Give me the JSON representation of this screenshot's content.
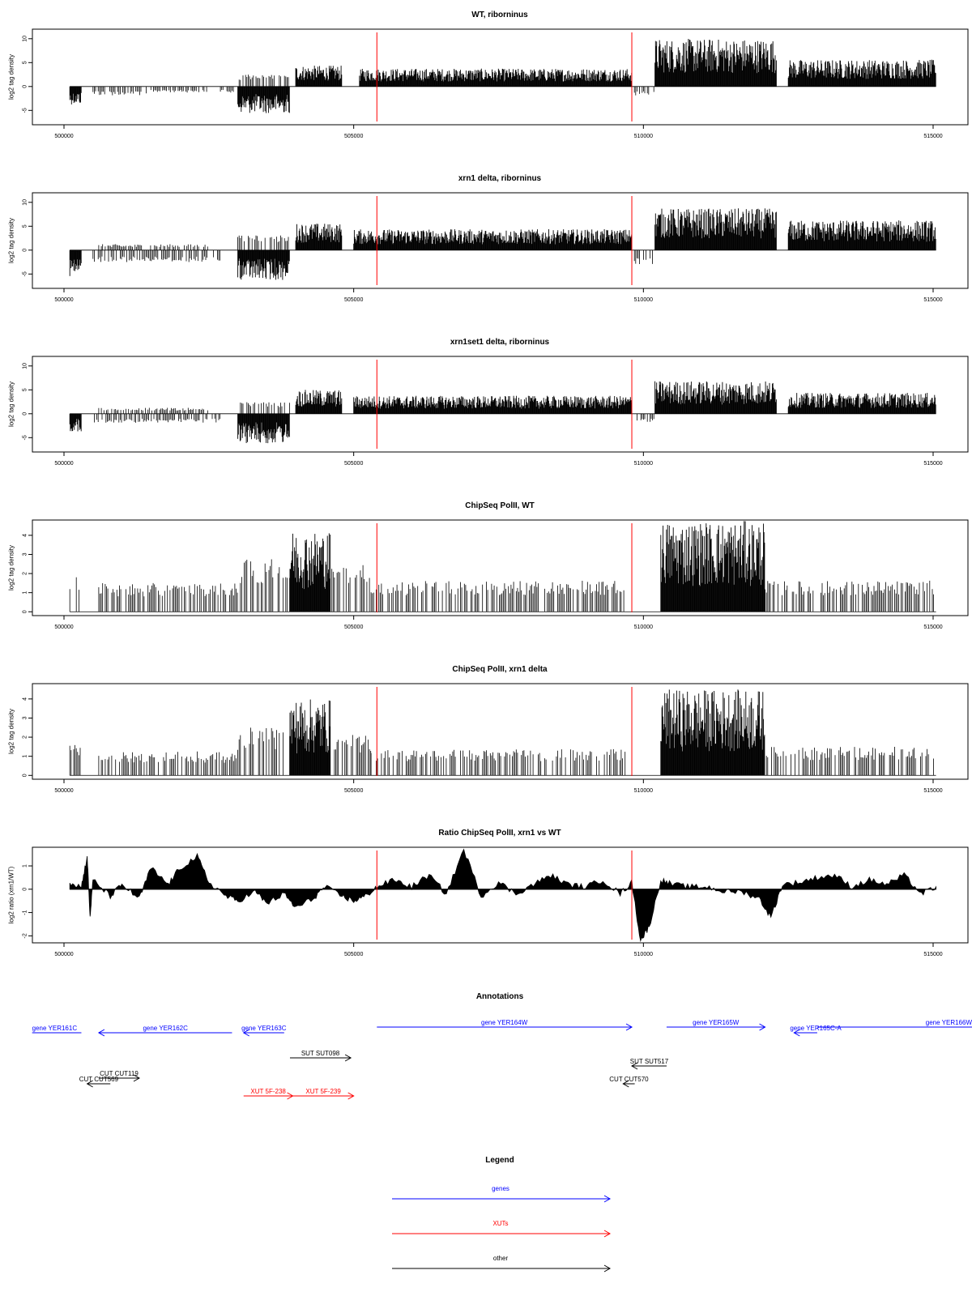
{
  "colors": {
    "gene": "#0000ff",
    "xut": "#ff0000",
    "other": "#000000",
    "marker": "#ff0000",
    "signal": "#000000"
  },
  "chart_data": [
    {
      "type": "bar",
      "title": "WT, riborninus",
      "ylabel": "log2 tag density",
      "xlim": [
        500000,
        515000
      ],
      "ylim": [
        -8,
        12
      ],
      "xticks": [
        "500000",
        "505000",
        "510000",
        "515000"
      ],
      "yticks": [
        "-5",
        "0",
        "5",
        "10"
      ],
      "markers_x": [
        505400,
        509800
      ],
      "segments": [
        {
          "x0": 500100,
          "x1": 500300,
          "level": -3
        },
        {
          "x0": 500500,
          "x1": 501500,
          "level": -1.5
        },
        {
          "x0": 501500,
          "x1": 502500,
          "level": -1
        },
        {
          "x0": 502700,
          "x1": 503000,
          "level": -1
        },
        {
          "x0": 503000,
          "x1": 503900,
          "level": -4.5
        },
        {
          "x0": 503000,
          "x1": 503900,
          "level": 2
        },
        {
          "x0": 504000,
          "x1": 504800,
          "level": 3.5
        },
        {
          "x0": 505100,
          "x1": 509800,
          "level": 3
        },
        {
          "x0": 509800,
          "x1": 510200,
          "level": -1.5
        },
        {
          "x0": 510200,
          "x1": 512300,
          "level": 8
        },
        {
          "x0": 512500,
          "x1": 515050,
          "level": 4.5
        }
      ]
    },
    {
      "type": "bar",
      "title": "xrn1 delta, riborninus",
      "ylabel": "log2 tag density",
      "xlim": [
        500000,
        515000
      ],
      "ylim": [
        -8,
        12
      ],
      "xticks": [
        "500000",
        "505000",
        "510000",
        "515000"
      ],
      "yticks": [
        "-5",
        "0",
        "5",
        "10"
      ],
      "markers_x": [
        505400,
        509800
      ],
      "segments": [
        {
          "x0": 500100,
          "x1": 500300,
          "level": -4.5
        },
        {
          "x0": 500500,
          "x1": 502700,
          "level": -2
        },
        {
          "x0": 500600,
          "x1": 502500,
          "level": 1
        },
        {
          "x0": 503000,
          "x1": 503900,
          "level": -5
        },
        {
          "x0": 503000,
          "x1": 503900,
          "level": 2.5
        },
        {
          "x0": 504000,
          "x1": 504800,
          "level": 4.5
        },
        {
          "x0": 505000,
          "x1": 509800,
          "level": 3.5
        },
        {
          "x0": 509800,
          "x1": 510200,
          "level": -2.5
        },
        {
          "x0": 510200,
          "x1": 512300,
          "level": 7
        },
        {
          "x0": 512500,
          "x1": 515050,
          "level": 5
        }
      ]
    },
    {
      "type": "bar",
      "title": "xrn1set1 delta, riborninus",
      "ylabel": "log2 tag density",
      "xlim": [
        500000,
        515000
      ],
      "ylim": [
        -8,
        12
      ],
      "xticks": [
        "500000",
        "505000",
        "510000",
        "515000"
      ],
      "yticks": [
        "-5",
        "0",
        "5",
        "10"
      ],
      "markers_x": [
        505400,
        509800
      ],
      "segments": [
        {
          "x0": 500100,
          "x1": 500300,
          "level": -3
        },
        {
          "x0": 500500,
          "x1": 502700,
          "level": -1.5
        },
        {
          "x0": 500600,
          "x1": 502500,
          "level": 1
        },
        {
          "x0": 503000,
          "x1": 503900,
          "level": -5
        },
        {
          "x0": 503000,
          "x1": 503900,
          "level": 2
        },
        {
          "x0": 504000,
          "x1": 504800,
          "level": 4
        },
        {
          "x0": 505000,
          "x1": 509800,
          "level": 3
        },
        {
          "x0": 509800,
          "x1": 510200,
          "level": -1.5
        },
        {
          "x0": 510200,
          "x1": 512300,
          "level": 5.5
        },
        {
          "x0": 512500,
          "x1": 515050,
          "level": 3.5
        }
      ]
    },
    {
      "type": "bar",
      "title": "ChipSeq PolII, WT",
      "ylabel": "log2 tag density",
      "xlim": [
        500000,
        515000
      ],
      "ylim": [
        -0.2,
        4.8
      ],
      "xticks": [
        "500000",
        "505000",
        "510000",
        "515000"
      ],
      "yticks": [
        "0",
        "1",
        "2",
        "3",
        "4"
      ],
      "markers_x": [
        505400,
        509800
      ],
      "segments": [
        {
          "x0": 500100,
          "x1": 500300,
          "level": 1.5
        },
        {
          "x0": 500600,
          "x1": 503000,
          "level": 1.2
        },
        {
          "x0": 503000,
          "x1": 503900,
          "level": 2.2
        },
        {
          "x0": 503900,
          "x1": 504600,
          "level": 3.4
        },
        {
          "x0": 504600,
          "x1": 505300,
          "level": 2.0
        },
        {
          "x0": 505300,
          "x1": 509700,
          "level": 1.3
        },
        {
          "x0": 510300,
          "x1": 512100,
          "level": 3.8
        },
        {
          "x0": 512100,
          "x1": 515050,
          "level": 1.3
        }
      ]
    },
    {
      "type": "bar",
      "title": "ChipSeq PolII, xrn1 delta",
      "ylabel": "log2 tag density",
      "xlim": [
        500000,
        515000
      ],
      "ylim": [
        -0.2,
        4.8
      ],
      "xticks": [
        "500000",
        "505000",
        "510000",
        "515000"
      ],
      "yticks": [
        "0",
        "1",
        "2",
        "3",
        "4"
      ],
      "markers_x": [
        505400,
        509800
      ],
      "segments": [
        {
          "x0": 500100,
          "x1": 500300,
          "level": 1.3
        },
        {
          "x0": 500600,
          "x1": 503000,
          "level": 1.0
        },
        {
          "x0": 503000,
          "x1": 503900,
          "level": 2.0
        },
        {
          "x0": 503900,
          "x1": 504600,
          "level": 3.2
        },
        {
          "x0": 504600,
          "x1": 505300,
          "level": 1.7
        },
        {
          "x0": 505300,
          "x1": 509700,
          "level": 1.1
        },
        {
          "x0": 510300,
          "x1": 512100,
          "level": 3.6
        },
        {
          "x0": 512100,
          "x1": 515050,
          "level": 1.2
        }
      ]
    },
    {
      "type": "area",
      "title": "Ratio ChipSeq PolII, xrn1 vs WT",
      "ylabel": "log2 ratio (xrn1/WT)",
      "xlim": [
        500000,
        515000
      ],
      "ylim": [
        -2.3,
        1.8
      ],
      "xticks": [
        "500000",
        "505000",
        "510000",
        "515000"
      ],
      "yticks": [
        "-2",
        "-1",
        "0",
        "1"
      ],
      "markers_x": [
        505400,
        509800
      ],
      "x": [
        500100,
        500300,
        500400,
        500450,
        500500,
        500800,
        501000,
        501300,
        501500,
        501800,
        502000,
        502300,
        502500,
        502800,
        503000,
        503300,
        503500,
        503800,
        504000,
        504300,
        504500,
        504800,
        505000,
        505200,
        505400,
        505700,
        506000,
        506300,
        506600,
        506900,
        507200,
        507500,
        507800,
        508100,
        508400,
        508700,
        509000,
        509300,
        509600,
        509800,
        509950,
        510100,
        510300,
        510500,
        510800,
        511100,
        511400,
        511700,
        512000,
        512200,
        512400,
        512700,
        513000,
        513300,
        513600,
        513900,
        514200,
        514500,
        514800,
        515050
      ],
      "y": [
        0.3,
        0.1,
        1.4,
        -1.2,
        0.4,
        -0.3,
        0.2,
        -0.4,
        0.9,
        0.2,
        0.9,
        1.4,
        0.3,
        -0.3,
        -0.5,
        -0.1,
        -0.6,
        -0.2,
        -0.8,
        -0.4,
        0.1,
        -0.3,
        -0.5,
        -0.3,
        0.1,
        0.4,
        0.1,
        0.6,
        -0.2,
        1.7,
        -0.3,
        0.3,
        -0.2,
        0.2,
        0.6,
        0.2,
        0.1,
        0.4,
        -0.2,
        0.3,
        -2.2,
        -1.6,
        0.4,
        0.2,
        0.1,
        0.1,
        -0.1,
        -0.1,
        -0.4,
        -1.2,
        0.2,
        0.3,
        0.5,
        0.6,
        0.1,
        0.4,
        0.2,
        0.6,
        -0.2,
        0.1
      ]
    },
    {
      "type": "annotations",
      "title": "Annotations",
      "features": [
        {
          "label": "gene YER161C",
          "kind": "gene",
          "x0": 499450,
          "x1": 500300,
          "dir": "none",
          "row": 0
        },
        {
          "label": "gene YER162C",
          "kind": "gene",
          "x0": 500600,
          "x1": 502900,
          "dir": "left",
          "row": 0
        },
        {
          "label": "gene YER163C",
          "kind": "gene",
          "x0": 503100,
          "x1": 503800,
          "dir": "left",
          "row": 0
        },
        {
          "label": "gene YER164W",
          "kind": "gene",
          "x0": 505400,
          "x1": 509800,
          "dir": "right",
          "row": -1
        },
        {
          "label": "gene YER165W",
          "kind": "gene",
          "x0": 510400,
          "x1": 512100,
          "dir": "right",
          "row": -1
        },
        {
          "label": "gene YER165C-A",
          "kind": "gene",
          "x0": 512600,
          "x1": 513000,
          "dir": "left",
          "row": 0
        },
        {
          "label": "gene YER166W",
          "kind": "gene",
          "x0": 513000,
          "x1": 515700,
          "dir": "none",
          "row": -1
        },
        {
          "label": "SUT SUT098",
          "kind": "other",
          "x0": 503900,
          "x1": 504950,
          "dir": "right",
          "row": 1
        },
        {
          "label": "SUT SUT517",
          "kind": "other",
          "x0": 509800,
          "x1": 510400,
          "dir": "left",
          "row": 2
        },
        {
          "label": "CUT CUT119",
          "kind": "other",
          "x0": 500600,
          "x1": 501300,
          "dir": "right",
          "row": 3
        },
        {
          "label": "CUT CUT569",
          "kind": "other",
          "x0": 500400,
          "x1": 500800,
          "dir": "left",
          "row": 4
        },
        {
          "label": "CUT CUT570",
          "kind": "other",
          "x0": 509650,
          "x1": 509850,
          "dir": "left",
          "row": 4
        },
        {
          "label": "XUT 5F-238",
          "kind": "xut",
          "x0": 503100,
          "x1": 503950,
          "dir": "right",
          "row": 5
        },
        {
          "label": "XUT 5F-239",
          "kind": "xut",
          "x0": 503950,
          "x1": 505000,
          "dir": "right",
          "row": 5
        }
      ]
    },
    {
      "type": "legend",
      "title": "Legend",
      "entries": [
        {
          "label": "genes",
          "kind": "gene"
        },
        {
          "label": "XUTs",
          "kind": "xut"
        },
        {
          "label": "other",
          "kind": "other"
        }
      ]
    }
  ]
}
